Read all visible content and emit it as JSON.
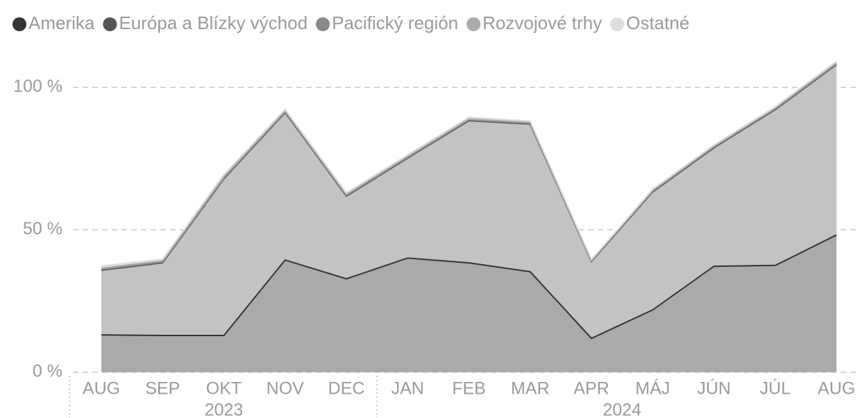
{
  "chart_data": {
    "type": "stacked-area",
    "categories": [
      "AUG",
      "SEP",
      "OKT",
      "NOV",
      "DEC",
      "JAN",
      "FEB",
      "MAR",
      "APR",
      "MÁJ",
      "JÚN",
      "JÚL",
      "AUG"
    ],
    "groups": [
      {
        "label": "2023",
        "count": 5
      },
      {
        "label": "2024",
        "count": 8
      }
    ],
    "series": [
      {
        "name": "Amerika",
        "color": "#333333",
        "fill": "#aaaaaa",
        "values": [
          13.1,
          12.9,
          12.9,
          39.4,
          32.8,
          40.1,
          38.4,
          35.3,
          11.9,
          21.9,
          37.2,
          37.5,
          48.2
        ]
      },
      {
        "name": "Európa a Blízky východ",
        "color": "#555555",
        "fill": "#c3c3c3",
        "values": [
          22.7,
          25.5,
          55.0,
          51.8,
          29.0,
          35.1,
          49.9,
          51.8,
          27.0,
          41.4,
          41.6,
          54.7,
          59.8
        ]
      },
      {
        "name": "Pacifický región",
        "color": "#888888",
        "fill": "#999999",
        "values": [
          0.3,
          0.3,
          0.3,
          0.3,
          0.3,
          0.3,
          0.3,
          0.3,
          0.2,
          0.3,
          0.3,
          0.3,
          0.3
        ]
      },
      {
        "name": "Rozvojové trhy",
        "color": "#aaaaaa",
        "fill": "#b5b5b5",
        "values": [
          0.4,
          0.4,
          0.4,
          0.3,
          0.3,
          0.3,
          0.3,
          0.3,
          0.2,
          0.3,
          0.3,
          0.3,
          0.3
        ]
      },
      {
        "name": "Ostatné",
        "color": "#dddddd",
        "fill": "#e0e0e0",
        "values": [
          0.8,
          0.6,
          0.8,
          0.5,
          0.6,
          0.5,
          0.6,
          0.5,
          0.3,
          0.4,
          0.4,
          0.4,
          0.6
        ]
      }
    ],
    "ylim": [
      0,
      110
    ],
    "yticks": [
      {
        "value": 0,
        "label": "0 %"
      },
      {
        "value": 50,
        "label": "50 %"
      },
      {
        "value": 100,
        "label": "100 %"
      }
    ],
    "grid": true
  }
}
